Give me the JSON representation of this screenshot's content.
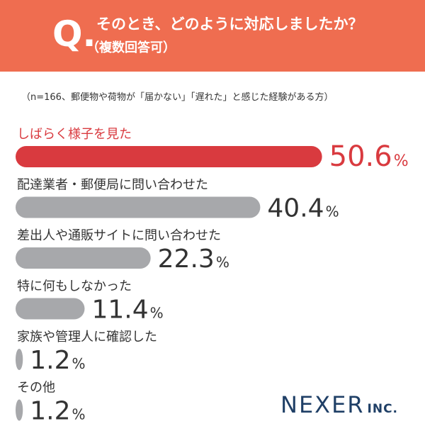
{
  "header": {
    "q_mark": "Q.",
    "question": "そのとき、どのように対応しましたか？",
    "subtitle": "（複数回答可）",
    "background_color": "#ef6d50"
  },
  "note": "（n=166、郵便物や荷物が「届かない」「遅れた」と感じた経験がある方）",
  "logo": {
    "brand": "NEXER",
    "suffix": "INC."
  },
  "chart_data": {
    "type": "bar",
    "orientation": "horizontal",
    "categories": [
      "しばらく様子を見た",
      "配達業者・郵便局に問い合わせた",
      "差出人や通販サイトに問い合わせた",
      "特に何もしなかった",
      "家族や管理人に確認した",
      "その他"
    ],
    "values": [
      50.6,
      40.4,
      22.3,
      11.4,
      1.2,
      1.2
    ],
    "value_labels": [
      "50.6",
      "40.4",
      "22.3",
      "11.4",
      "1.2",
      "1.2"
    ],
    "unit": "%",
    "highlight_index": 0,
    "colors": {
      "highlight": "#d93a3f",
      "default": "#a7a8ab",
      "text": "#333333"
    }
  }
}
